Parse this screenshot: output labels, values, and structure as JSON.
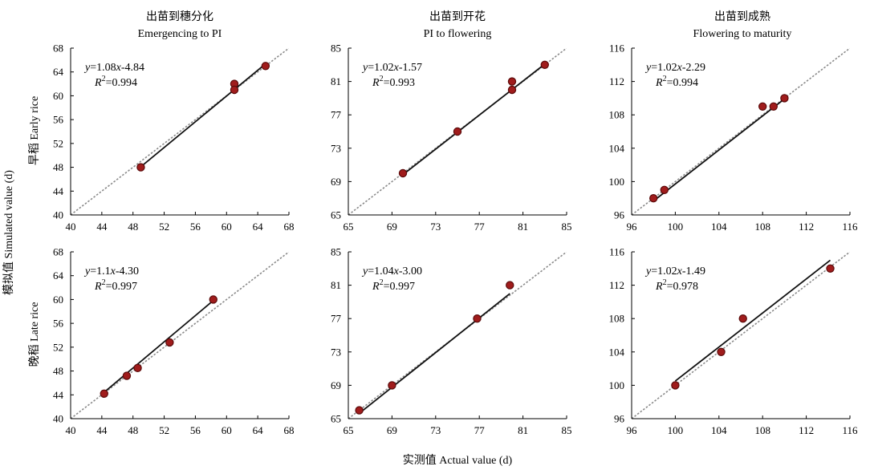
{
  "figure": {
    "column_titles": [
      {
        "cn": "出苗到穗分化",
        "en": "Emergencing to PI"
      },
      {
        "cn": "出苗到开花",
        "en": "PI to flowering"
      },
      {
        "cn": "出苗到成熟",
        "en": "Flowering to maturity"
      }
    ],
    "y_axis_title": "模拟值 Simulated value (d)",
    "x_axis_title": "实测值 Actual value (d)",
    "row_titles": [
      "早稻 Early rice",
      "晚稻 Late rice"
    ]
  },
  "colors": {
    "marker": "#a01c1c",
    "marker_edge": "#5a0a0a",
    "fit_line": "#111111",
    "one_to_one_line": "#8a8a8a"
  },
  "chart_data": [
    {
      "type": "scatter",
      "row": 0,
      "col": 0,
      "xlim": [
        40,
        68
      ],
      "ylim": [
        40,
        68
      ],
      "xticks": [
        40,
        44,
        48,
        52,
        56,
        60,
        64,
        68
      ],
      "yticks": [
        40,
        44,
        48,
        52,
        56,
        60,
        64,
        68
      ],
      "points": [
        [
          49,
          48
        ],
        [
          61,
          62
        ],
        [
          61,
          61
        ],
        [
          65,
          65
        ]
      ],
      "fit": {
        "slope": 1.08,
        "intercept": -4.84,
        "x_range": [
          49,
          65
        ]
      },
      "equation": {
        "y_prefix": "y",
        "eq_mid": "=1.08",
        "x_var": "x",
        "eq_tail": "-4.84",
        "r2_value": "=0.994"
      }
    },
    {
      "type": "scatter",
      "row": 0,
      "col": 1,
      "xlim": [
        65,
        85
      ],
      "ylim": [
        65,
        85
      ],
      "xticks": [
        65,
        69,
        73,
        77,
        81,
        85
      ],
      "yticks": [
        65,
        69,
        73,
        77,
        81,
        85
      ],
      "points": [
        [
          70,
          70
        ],
        [
          75,
          75
        ],
        [
          80,
          81
        ],
        [
          80,
          80
        ],
        [
          83,
          83
        ]
      ],
      "fit": {
        "slope": 1.02,
        "intercept": -1.57,
        "x_range": [
          70,
          83
        ]
      },
      "equation": {
        "y_prefix": "y",
        "eq_mid": "=1.02",
        "x_var": "x",
        "eq_tail": "-1.57",
        "r2_value": "=0.993"
      }
    },
    {
      "type": "scatter",
      "row": 0,
      "col": 2,
      "xlim": [
        96,
        116
      ],
      "ylim": [
        96,
        116
      ],
      "xticks": [
        96,
        100,
        104,
        108,
        112,
        116
      ],
      "yticks": [
        96,
        100,
        104,
        108,
        112,
        116
      ],
      "points": [
        [
          98,
          98
        ],
        [
          99,
          99
        ],
        [
          108,
          109
        ],
        [
          109,
          109
        ],
        [
          110,
          110
        ]
      ],
      "fit": {
        "slope": 1.02,
        "intercept": -2.29,
        "x_range": [
          98,
          110
        ]
      },
      "equation": {
        "y_prefix": "y",
        "eq_mid": "=1.02",
        "x_var": "x",
        "eq_tail": "-2.29",
        "r2_value": "=0.994"
      }
    },
    {
      "type": "scatter",
      "row": 1,
      "col": 0,
      "xlim": [
        40,
        68
      ],
      "ylim": [
        40,
        68
      ],
      "xticks": [
        40,
        44,
        48,
        52,
        56,
        60,
        64,
        68
      ],
      "yticks": [
        40,
        44,
        48,
        52,
        56,
        60,
        64,
        68
      ],
      "points": [
        [
          44.3,
          44.2
        ],
        [
          47.2,
          47.2
        ],
        [
          48.6,
          48.5
        ],
        [
          52.7,
          52.8
        ],
        [
          58.3,
          60
        ]
      ],
      "fit": {
        "slope": 1.1,
        "intercept": -4.3,
        "x_range": [
          44.3,
          58.3
        ]
      },
      "equation": {
        "y_prefix": "y",
        "eq_mid": "=1.1",
        "x_var": "x",
        "eq_tail": "-4.30",
        "r2_value": "=0.997"
      }
    },
    {
      "type": "scatter",
      "row": 1,
      "col": 1,
      "xlim": [
        65,
        85
      ],
      "ylim": [
        65,
        85
      ],
      "xticks": [
        65,
        69,
        73,
        77,
        81,
        85
      ],
      "yticks": [
        65,
        69,
        73,
        77,
        81,
        85
      ],
      "points": [
        [
          66,
          66
        ],
        [
          69,
          69
        ],
        [
          76.8,
          77
        ],
        [
          79.8,
          81
        ]
      ],
      "fit": {
        "slope": 1.04,
        "intercept": -3.0,
        "x_range": [
          66,
          79.8
        ]
      },
      "equation": {
        "y_prefix": "y",
        "eq_mid": "=1.04",
        "x_var": "x",
        "eq_tail": "-3.00",
        "r2_value": "=0.997"
      }
    },
    {
      "type": "scatter",
      "row": 1,
      "col": 2,
      "xlim": [
        96,
        116
      ],
      "ylim": [
        96,
        116
      ],
      "xticks": [
        96,
        100,
        104,
        108,
        112,
        116
      ],
      "yticks": [
        96,
        100,
        104,
        108,
        112,
        116
      ],
      "points": [
        [
          100,
          100
        ],
        [
          104.2,
          104
        ],
        [
          106.2,
          108
        ],
        [
          114.2,
          114
        ]
      ],
      "fit": {
        "slope": 1.02,
        "intercept": -1.49,
        "x_range": [
          100,
          114.2
        ]
      },
      "equation": {
        "y_prefix": "y",
        "eq_mid": "=1.02",
        "x_var": "x",
        "eq_tail": "-1.49",
        "r2_value": "=0.978"
      }
    }
  ]
}
